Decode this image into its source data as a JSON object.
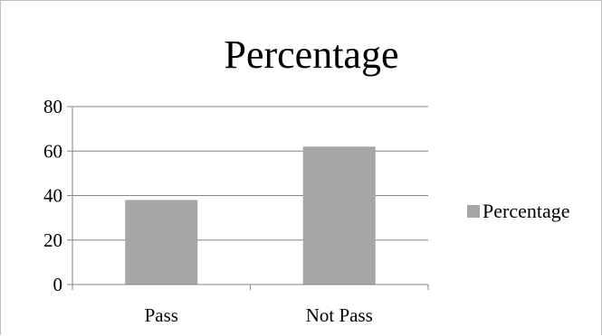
{
  "chart_data": {
    "type": "bar",
    "title": "Percentage",
    "categories": [
      "Pass",
      "Not Pass"
    ],
    "series": [
      {
        "name": "Percentage",
        "values": [
          38,
          62
        ],
        "color": "#a6a6a6"
      }
    ],
    "ylim": [
      0,
      80
    ],
    "yticks": [
      0,
      20,
      40,
      60,
      80
    ],
    "grid": true,
    "legend": "right"
  }
}
